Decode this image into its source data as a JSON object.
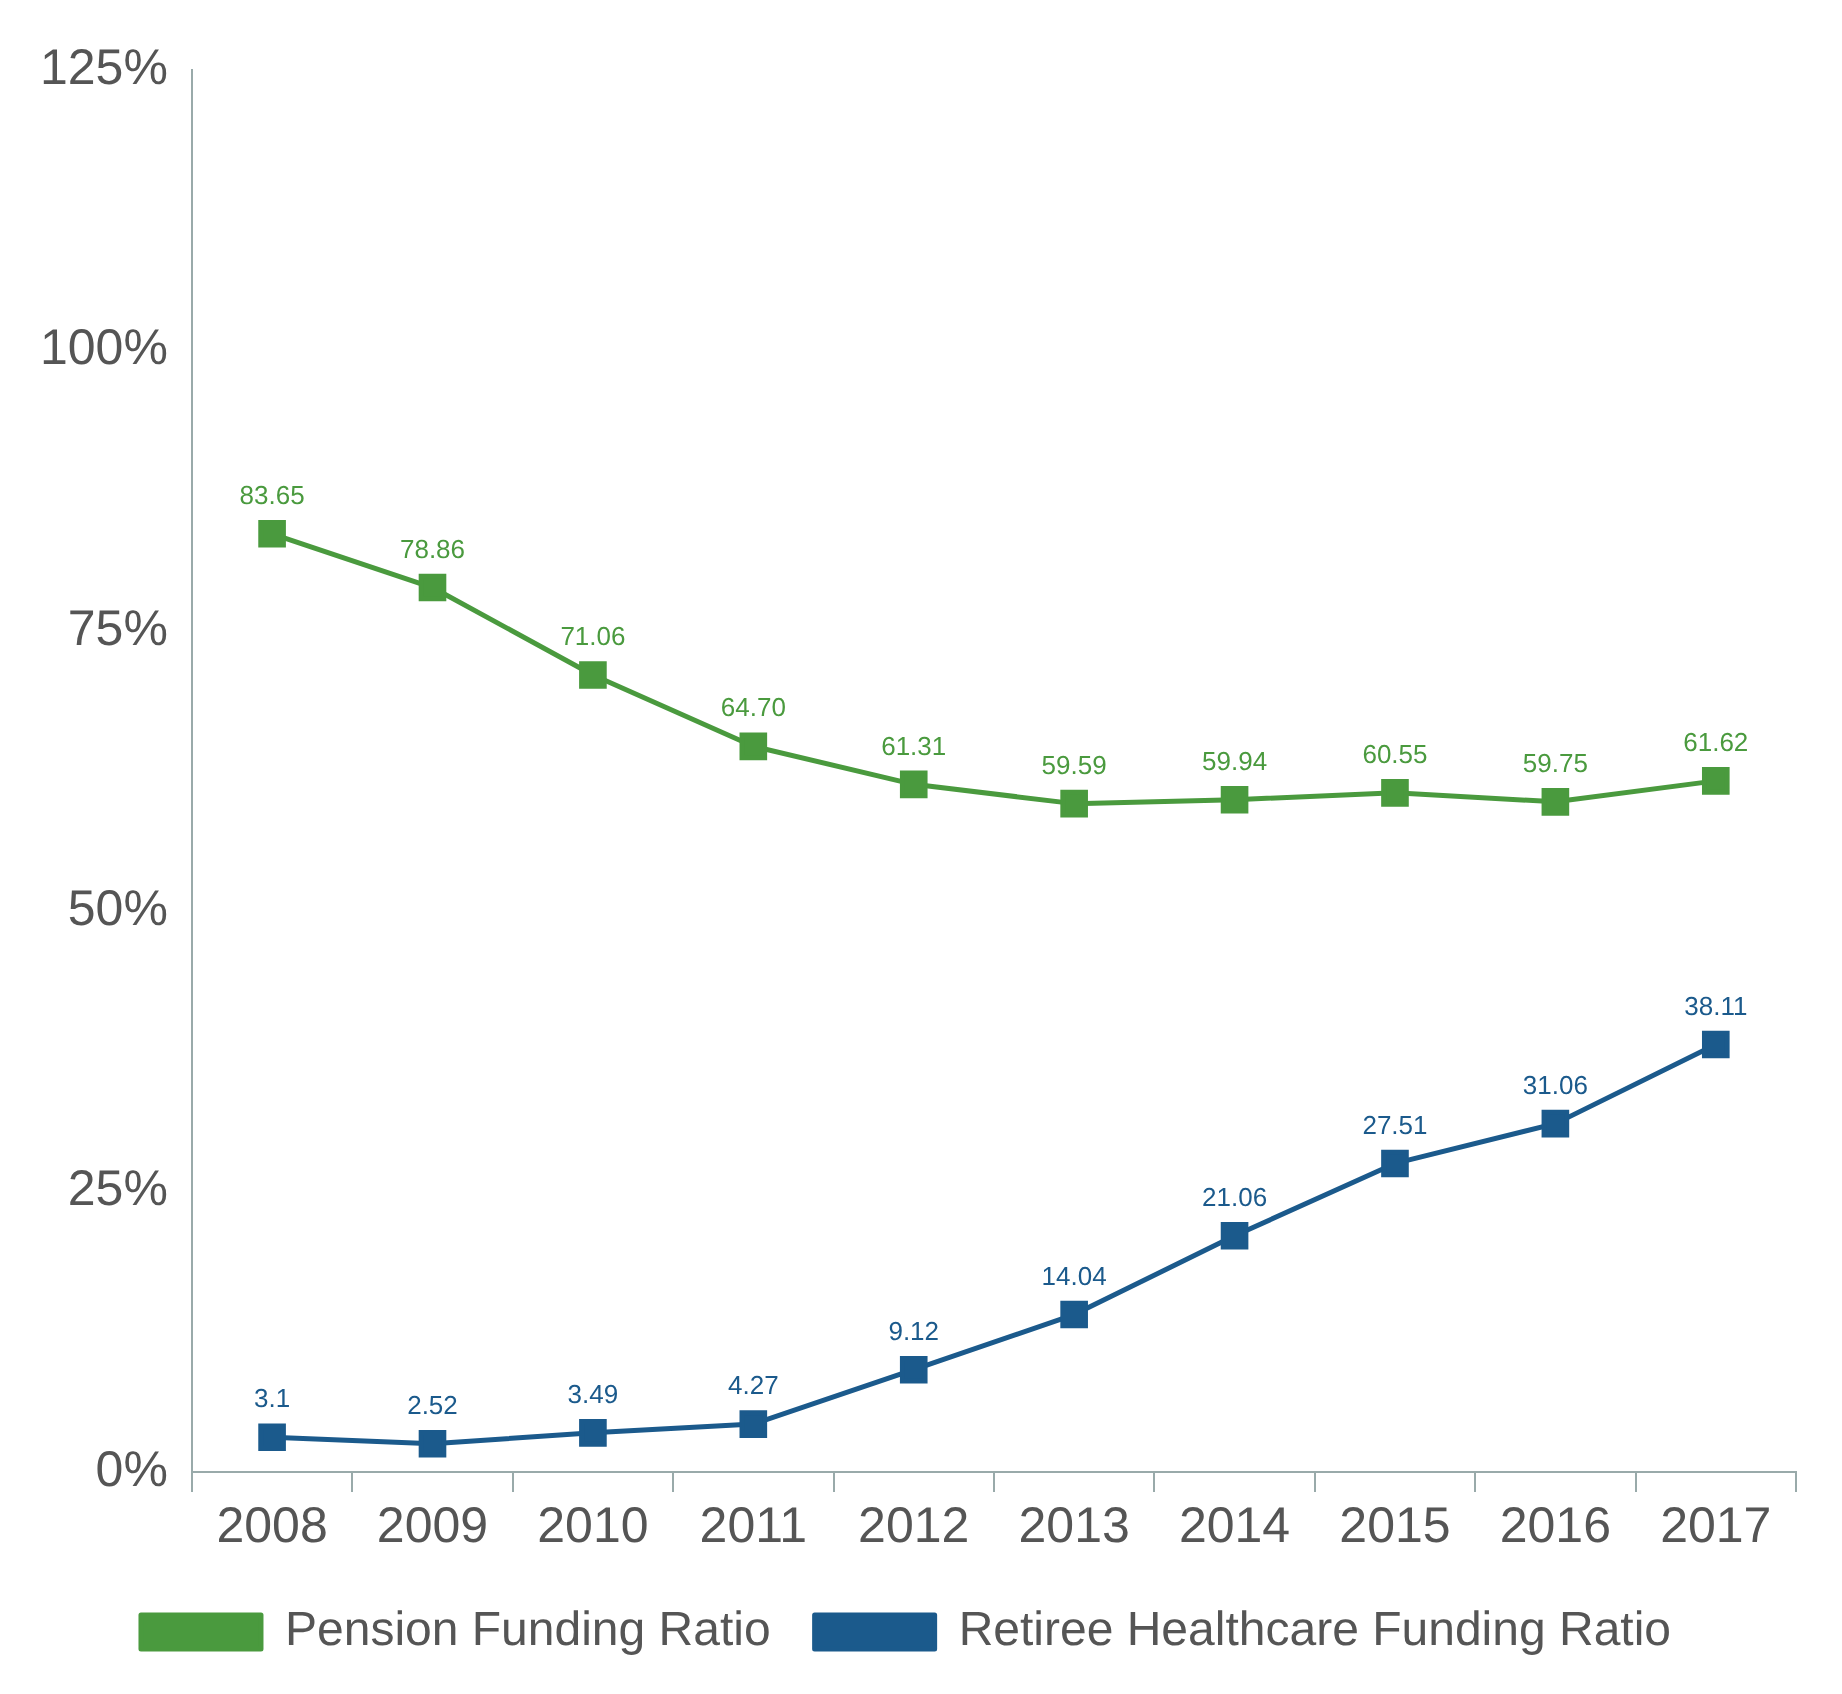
{
  "chart_data": {
    "type": "line",
    "categories": [
      "2008",
      "2009",
      "2010",
      "2011",
      "2012",
      "2013",
      "2014",
      "2015",
      "2016",
      "2017"
    ],
    "series": [
      {
        "name": "Pension Funding Ratio",
        "color": "#4a9a3e",
        "values": [
          83.65,
          78.86,
          71.06,
          64.7,
          61.31,
          59.59,
          59.94,
          60.55,
          59.75,
          61.62
        ],
        "value_labels": [
          "83.65",
          "78.86",
          "71.06",
          "64.70",
          "61.31",
          "59.59",
          "59.94",
          "60.55",
          "59.75",
          "61.62"
        ]
      },
      {
        "name": "Retiree Healthcare Funding Ratio",
        "color": "#1b5a8c",
        "values": [
          3.1,
          2.52,
          3.49,
          4.27,
          9.12,
          14.04,
          21.06,
          27.51,
          31.06,
          38.11
        ],
        "value_labels": [
          "3.1",
          "2.52",
          "3.49",
          "4.27",
          "9.12",
          "14.04",
          "21.06",
          "27.51",
          "31.06",
          "38.11"
        ]
      }
    ],
    "ylim": [
      0,
      125
    ],
    "yticks": [
      {
        "value": 0,
        "label": "0%"
      },
      {
        "value": 25,
        "label": "25%"
      },
      {
        "value": 50,
        "label": "50%"
      },
      {
        "value": 75,
        "label": "75%"
      },
      {
        "value": 100,
        "label": "100%"
      },
      {
        "value": 125,
        "label": "125%"
      }
    ],
    "grid": false,
    "legend": "bottom",
    "marker": "square",
    "line_style": "solid"
  }
}
